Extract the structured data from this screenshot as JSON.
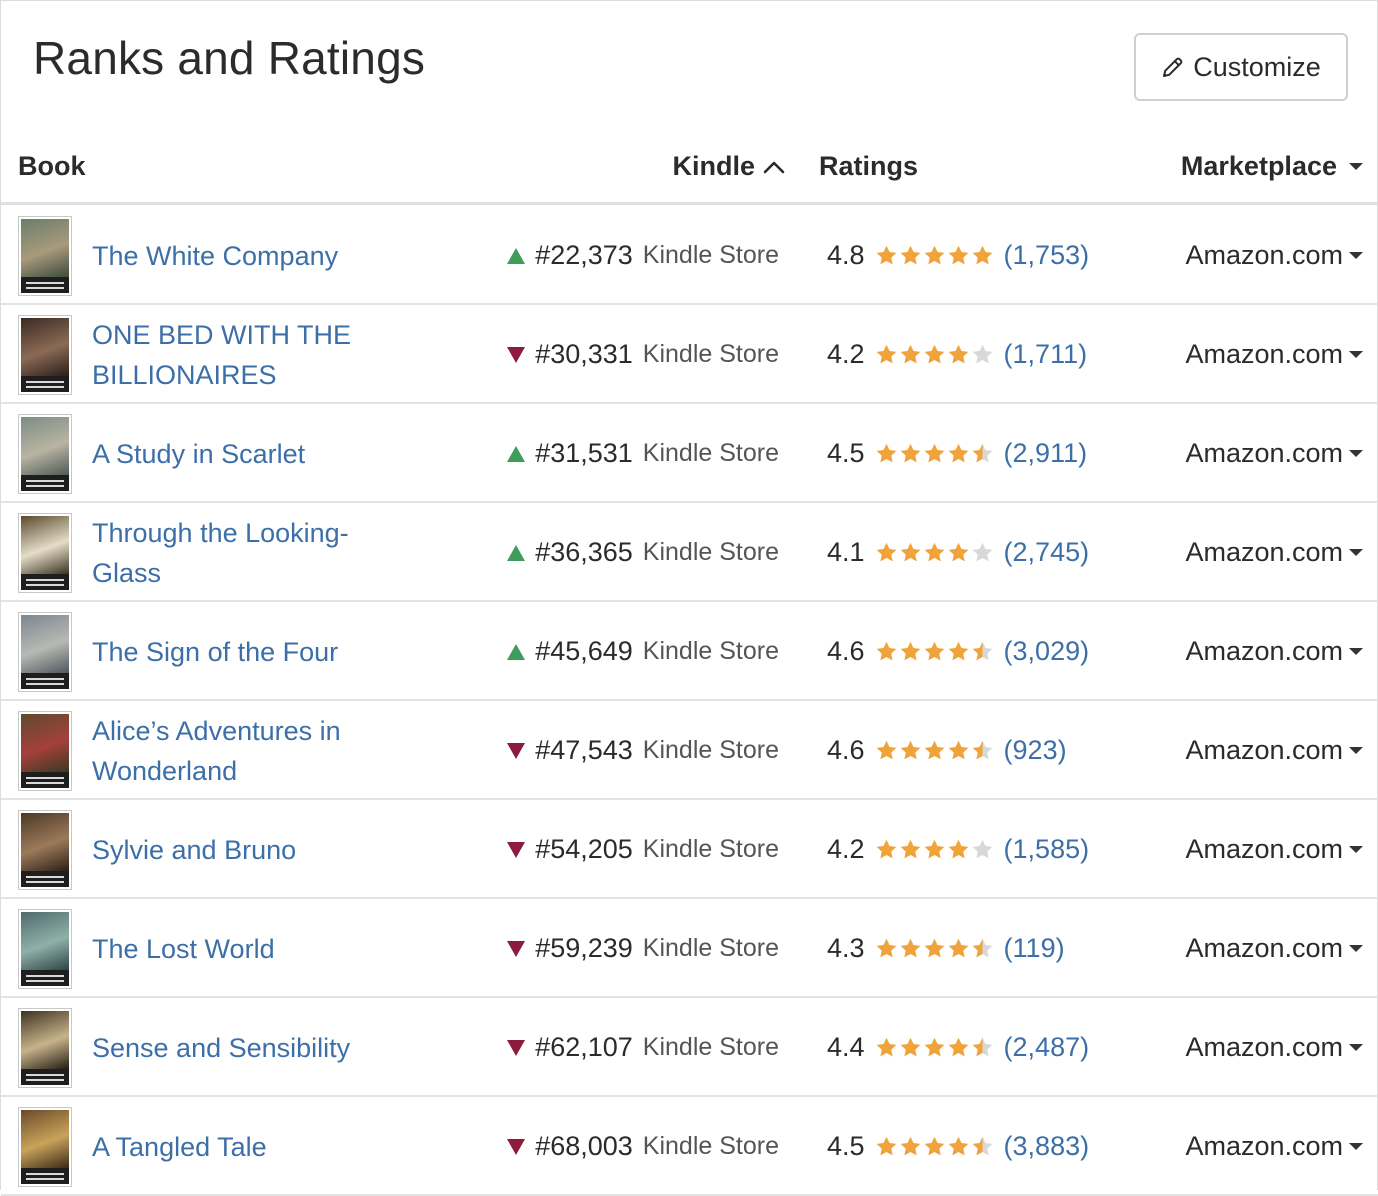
{
  "page": {
    "title": "Ranks and Ratings",
    "customize_label": "Customize"
  },
  "columns": {
    "book": "Book",
    "kindle": "Kindle",
    "ratings": "Ratings",
    "marketplace": "Marketplace"
  },
  "colors": {
    "link": "#3c6fa8",
    "up": "#3f9c5a",
    "down": "#8c1b3d",
    "star": "#f0a23b",
    "star_empty": "#d8d8d8"
  },
  "rows": [
    {
      "title": "The White Company",
      "trend": "up",
      "rank": "#22,373",
      "store": "Kindle Store",
      "rating": 4.8,
      "rating_label": "4.8",
      "count": "(1,753)",
      "marketplace": "Amazon.com",
      "cover": [
        "#6b7d6a",
        "#a89a7c",
        "#3d4a3c"
      ]
    },
    {
      "title": "ONE BED WITH THE BILLIONAIRES",
      "trend": "down",
      "rank": "#30,331",
      "store": "Kindle Store",
      "rating": 4.2,
      "rating_label": "4.2",
      "count": "(1,711)",
      "marketplace": "Amazon.com",
      "cover": [
        "#3a2a22",
        "#8b6a55",
        "#2a1f19"
      ]
    },
    {
      "title": "A Study in Scarlet",
      "trend": "up",
      "rank": "#31,531",
      "store": "Kindle Store",
      "rating": 4.5,
      "rating_label": "4.5",
      "count": "(2,911)",
      "marketplace": "Amazon.com",
      "cover": [
        "#7d8c83",
        "#b8b4a2",
        "#4e5a55"
      ]
    },
    {
      "title": "Through the Looking-Glass",
      "trend": "up",
      "rank": "#36,365",
      "store": "Kindle Store",
      "rating": 4.1,
      "rating_label": "4.1",
      "count": "(2,745)",
      "marketplace": "Amazon.com",
      "cover": [
        "#5a4a2e",
        "#e5ddc8",
        "#3b3020"
      ]
    },
    {
      "title": "The Sign of the Four",
      "trend": "up",
      "rank": "#45,649",
      "store": "Kindle Store",
      "rating": 4.6,
      "rating_label": "4.6",
      "count": "(3,029)",
      "marketplace": "Amazon.com",
      "cover": [
        "#7c8690",
        "#b7b9b3",
        "#50585e"
      ]
    },
    {
      "title": "Alice’s Adventures in Wonderland",
      "trend": "down",
      "rank": "#47,543",
      "store": "Kindle Store",
      "rating": 4.6,
      "rating_label": "4.6",
      "count": "(923)",
      "marketplace": "Amazon.com",
      "cover": [
        "#5e4b2f",
        "#a5403a",
        "#3b3a24"
      ]
    },
    {
      "title": "Sylvie and Bruno",
      "trend": "down",
      "rank": "#54,205",
      "store": "Kindle Store",
      "rating": 4.2,
      "rating_label": "4.2",
      "count": "(1,585)",
      "marketplace": "Amazon.com",
      "cover": [
        "#4b3826",
        "#9c7a5a",
        "#2c2018"
      ]
    },
    {
      "title": "The Lost World",
      "trend": "down",
      "rank": "#59,239",
      "store": "Kindle Store",
      "rating": 4.3,
      "rating_label": "4.3",
      "count": "(119)",
      "marketplace": "Amazon.com",
      "cover": [
        "#4f6a6c",
        "#8fb0a8",
        "#2f4446"
      ]
    },
    {
      "title": "Sense and Sensibility",
      "trend": "down",
      "rank": "#62,107",
      "store": "Kindle Store",
      "rating": 4.4,
      "rating_label": "4.4",
      "count": "(2,487)",
      "marketplace": "Amazon.com",
      "cover": [
        "#3e3222",
        "#c7b38a",
        "#241c13"
      ]
    },
    {
      "title": "A Tangled Tale",
      "trend": "down",
      "rank": "#68,003",
      "store": "Kindle Store",
      "rating": 4.5,
      "rating_label": "4.5",
      "count": "(3,883)",
      "marketplace": "Amazon.com",
      "cover": [
        "#6a4a2a",
        "#c9a35a",
        "#3a2a18"
      ]
    }
  ]
}
